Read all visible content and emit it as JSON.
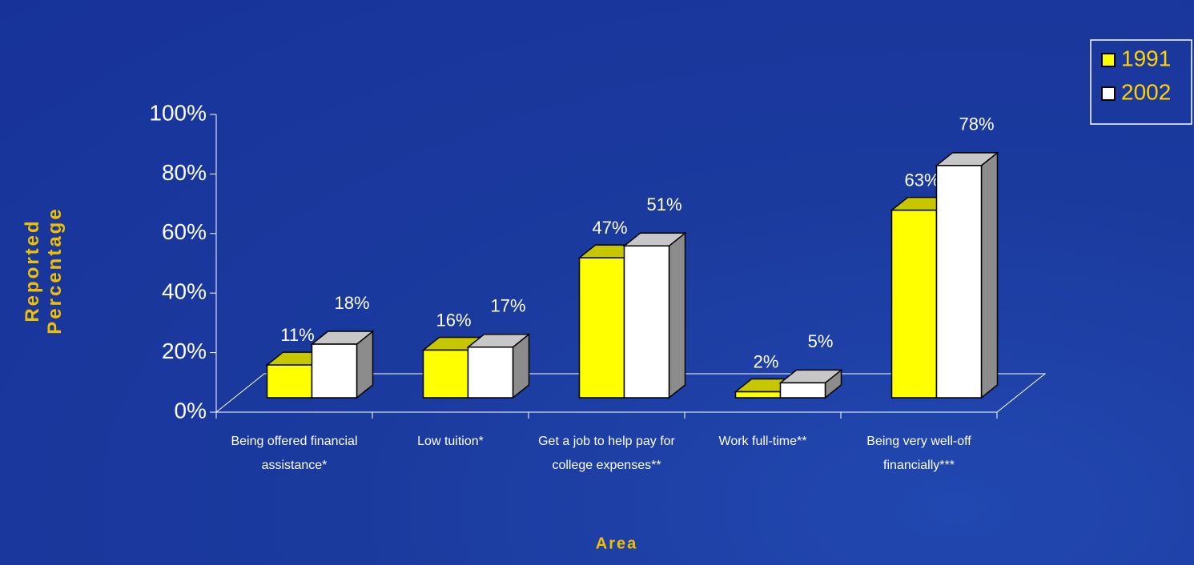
{
  "chart_data": {
    "type": "bar3d",
    "categories": [
      "Being offered financial assistance*",
      "Low tuition*",
      "Get a job to help pay for college expenses**",
      "Work full-time**",
      "Being very well-off financially***"
    ],
    "series": [
      {
        "name": "1991",
        "color": "#ffff00",
        "values": [
          11,
          16,
          47,
          2,
          63
        ],
        "value_labels": [
          "11%",
          "16%",
          "47%",
          "2%",
          "63%"
        ]
      },
      {
        "name": "2002",
        "color": "#ffffff",
        "values": [
          18,
          17,
          51,
          5,
          78
        ],
        "value_labels": [
          "18%",
          "17%",
          "51%",
          "5%",
          "78%"
        ]
      }
    ],
    "xlabel": "Area",
    "ylabel": "Reported Percentage",
    "ylim": [
      0,
      100
    ],
    "yticks": [
      {
        "value": 0,
        "label": "0%"
      },
      {
        "value": 20,
        "label": "20%"
      },
      {
        "value": 40,
        "label": "40%"
      },
      {
        "value": 60,
        "label": "60%"
      },
      {
        "value": 80,
        "label": "80%"
      },
      {
        "value": 100,
        "label": "100%"
      }
    ],
    "legend": "top-right"
  }
}
